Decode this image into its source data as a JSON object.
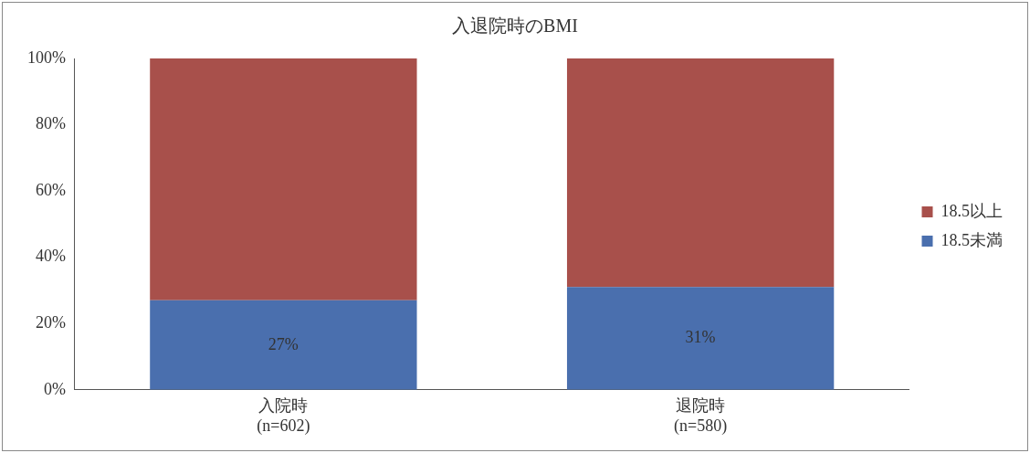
{
  "chart_data": {
    "type": "bar",
    "title": "入退院時のBMI",
    "categories": [
      "入院時\n(n=602)",
      "退院時\n(n=580)"
    ],
    "stacked": true,
    "series": [
      {
        "name": "18.5未満",
        "color": "#4a6fae",
        "values": [
          27,
          31
        ],
        "value_labels": [
          "27%",
          "31%"
        ]
      },
      {
        "name": "18.5以上",
        "color": "#a8504b",
        "values": [
          73,
          69
        ]
      }
    ],
    "ylim": [
      0,
      100
    ],
    "yticks": [
      {
        "value": 0,
        "label": "0%"
      },
      {
        "value": 20,
        "label": "20%"
      },
      {
        "value": 40,
        "label": "40%"
      },
      {
        "value": 60,
        "label": "60%"
      },
      {
        "value": 80,
        "label": "80%"
      },
      {
        "value": 100,
        "label": "100%"
      }
    ],
    "grid": false,
    "legend": "right"
  }
}
